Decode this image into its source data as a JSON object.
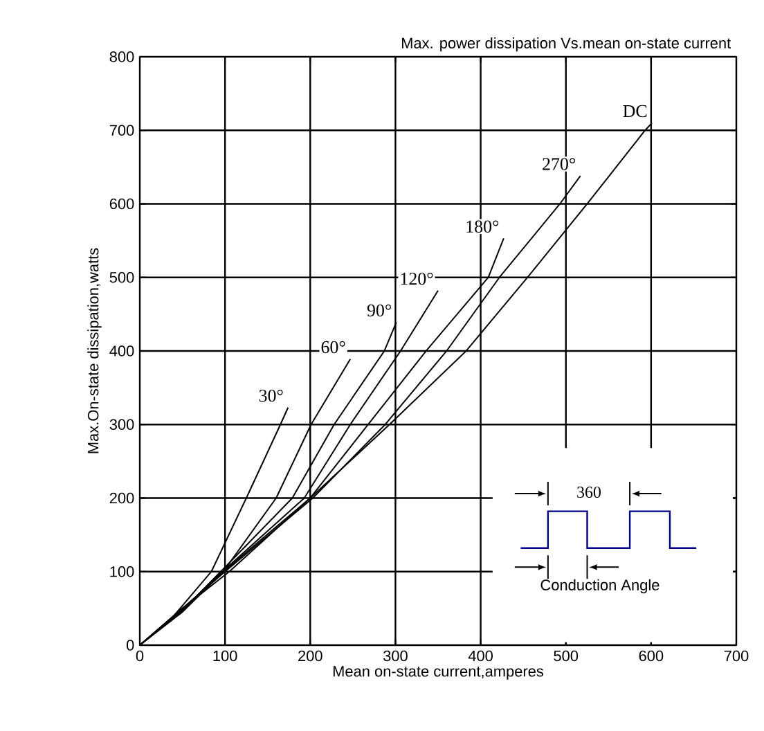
{
  "chart_data": {
    "type": "line",
    "title": "Max. power dissipation Vs.mean on-state current",
    "xlabel": "Mean on-state current,amperes",
    "ylabel": "Max.On-state dissipation,watts",
    "xlim": [
      0,
      700
    ],
    "ylim": [
      0,
      800
    ],
    "xticks": [
      0,
      100,
      200,
      300,
      400,
      500,
      600,
      700
    ],
    "yticks": [
      0,
      100,
      200,
      300,
      400,
      500,
      600,
      700,
      800
    ],
    "grid": true,
    "marker": "none",
    "line_style": "solid",
    "annotations": [
      "360",
      "Conduction Angle"
    ],
    "series": [
      {
        "name": "30°",
        "color": "#000000",
        "x": [
          0,
          40,
          84,
          125,
          165,
          174
        ],
        "values": [
          0,
          40,
          100,
          200,
          300,
          323
        ]
      },
      {
        "name": "60°",
        "color": "#000000",
        "x": [
          0,
          50,
          98,
          160,
          201,
          247
        ],
        "values": [
          0,
          45,
          100,
          200,
          300,
          389
        ]
      },
      {
        "name": "90°",
        "color": "#000000",
        "x": [
          0,
          50,
          95,
          179,
          228,
          287,
          301
        ],
        "values": [
          0,
          47,
          100,
          200,
          300,
          400,
          439
        ]
      },
      {
        "name": "120°",
        "color": "#000000",
        "x": [
          0,
          50,
          97,
          193,
          247,
          306,
          350
        ],
        "values": [
          0,
          48,
          100,
          200,
          300,
          400,
          482
        ]
      },
      {
        "name": "180°",
        "color": "#000000",
        "x": [
          0,
          50,
          98,
          200,
          268,
          336,
          409,
          427
        ],
        "values": [
          0,
          49,
          100,
          200,
          300,
          400,
          500,
          553
        ]
      },
      {
        "name": "270°",
        "color": "#000000",
        "x": [
          0,
          50,
          100,
          203,
          288,
          360,
          422,
          493,
          517
        ],
        "values": [
          0,
          50,
          100,
          200,
          300,
          400,
          500,
          600,
          638
        ]
      },
      {
        "name": "DC",
        "color": "#000000",
        "x": [
          0,
          50,
          105,
          200,
          293,
          383,
          455,
          525,
          593,
          601
        ],
        "values": [
          0,
          50,
          100,
          200,
          300,
          400,
          500,
          600,
          700,
          710
        ]
      }
    ]
  }
}
